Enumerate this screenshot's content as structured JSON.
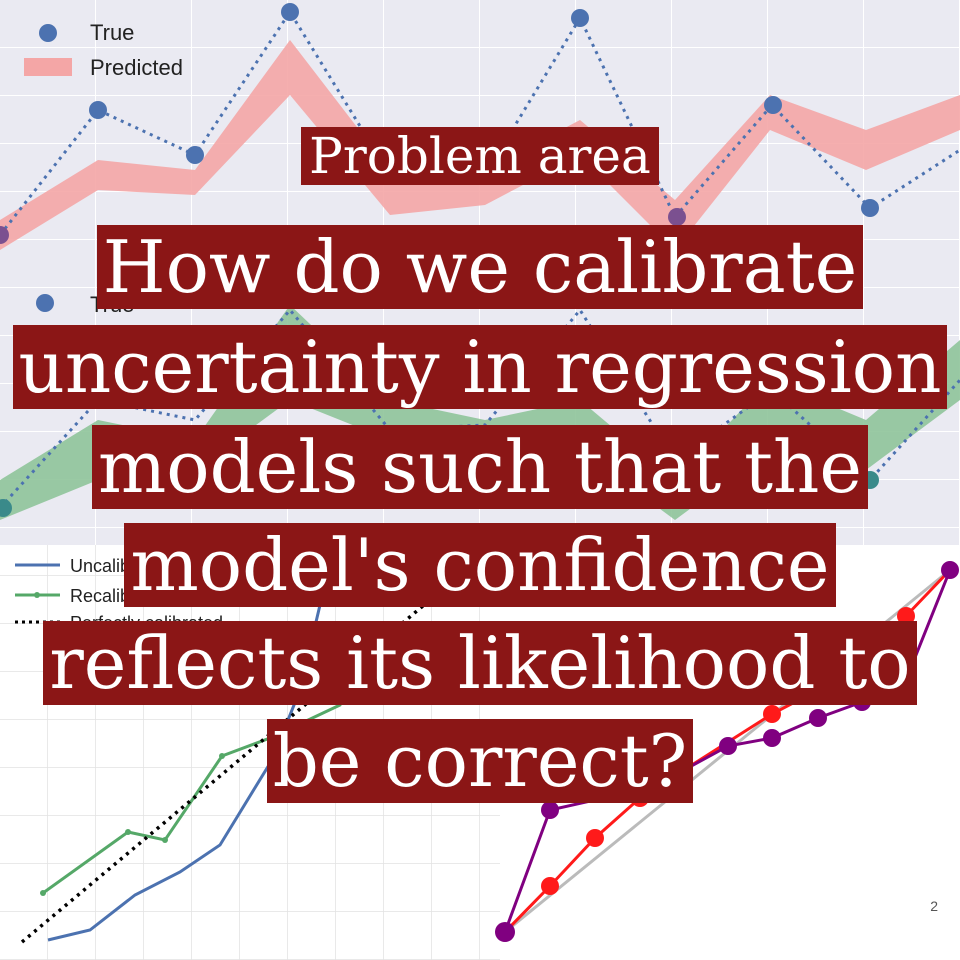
{
  "slide": {
    "category": "Problem area",
    "question_lines": [
      "How do we calibrate",
      "uncertainty in regression",
      "models such that the",
      "model's confidence",
      "reflects its likelihood to",
      "be correct?"
    ],
    "page_number": "2"
  },
  "background_charts": {
    "top": {
      "legend": [
        "True",
        "Predicted"
      ],
      "colors": {
        "true": "#4c72b0",
        "band": "#f4a6a6"
      }
    },
    "middle": {
      "legend": [
        "True"
      ],
      "colors": {
        "true": "#4c72b0",
        "band": "#8fc49a"
      }
    },
    "bottom_left": {
      "legend": [
        "Uncalibrat",
        "Recalibrat",
        "Perfectly calibrated"
      ],
      "colors": {
        "uncalibrated": "#4c72b0",
        "recalibrated": "#55a868",
        "perfect": "#000000"
      }
    },
    "bottom_right": {
      "colors": {
        "red": "#ff1a1a",
        "purple": "#800080",
        "diag": "#bbbbbb"
      }
    }
  }
}
